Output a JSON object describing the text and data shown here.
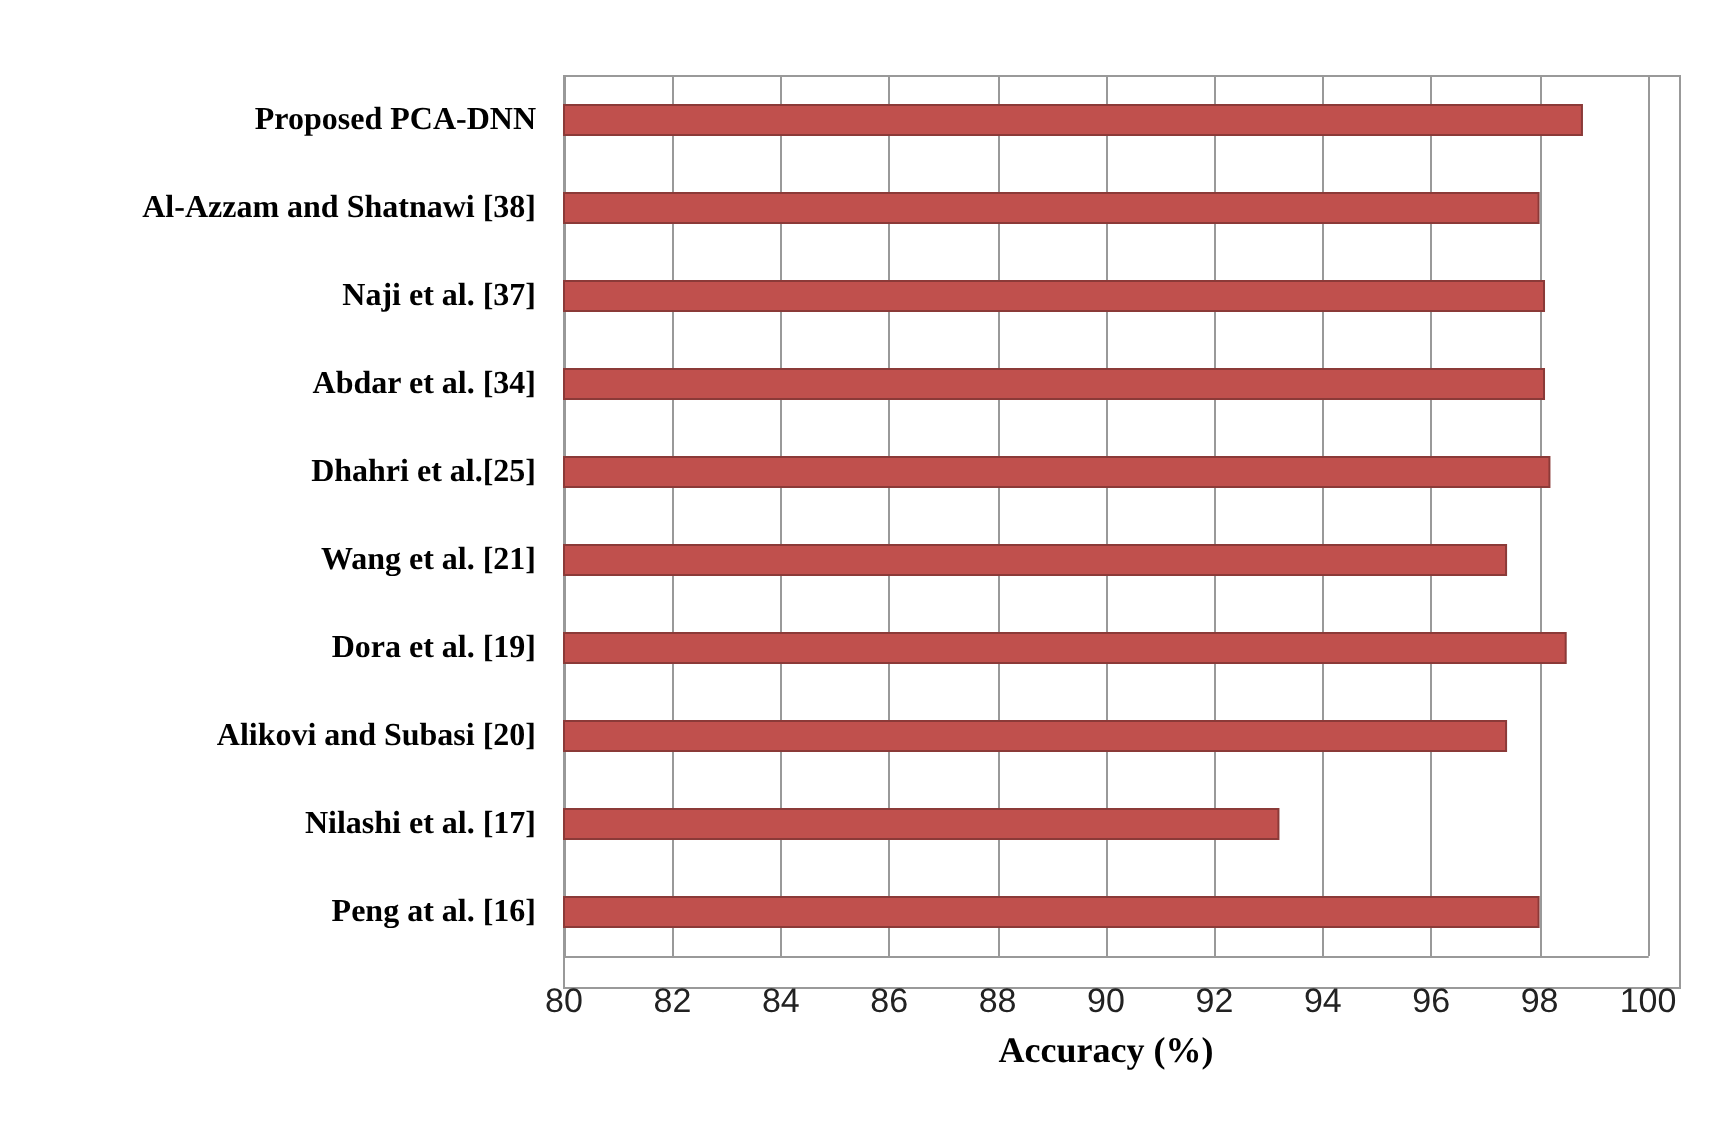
{
  "chart_data": {
    "type": "bar",
    "orientation": "horizontal",
    "xlabel": "Accuracy (%)",
    "categories": [
      "Proposed PCA-DNN",
      "Al-Azzam and Shatnawi [38]",
      "Naji et al. [37]",
      "Abdar et al. [34]",
      "Dhahri et al.[25]",
      "Wang et al. [21]",
      "Dora et al. [19]",
      "Alikovi and Subasi [20]",
      "Nilashi et al. [17]",
      "Peng at al. [16]"
    ],
    "values": [
      98.8,
      98.0,
      98.1,
      98.1,
      98.2,
      97.4,
      98.5,
      97.4,
      93.2,
      98.0
    ],
    "color": "#c0504d",
    "xlim": [
      80,
      100
    ],
    "xticks": [
      80,
      82,
      84,
      86,
      88,
      90,
      92,
      94,
      96,
      98,
      100
    ],
    "grid": "x"
  }
}
